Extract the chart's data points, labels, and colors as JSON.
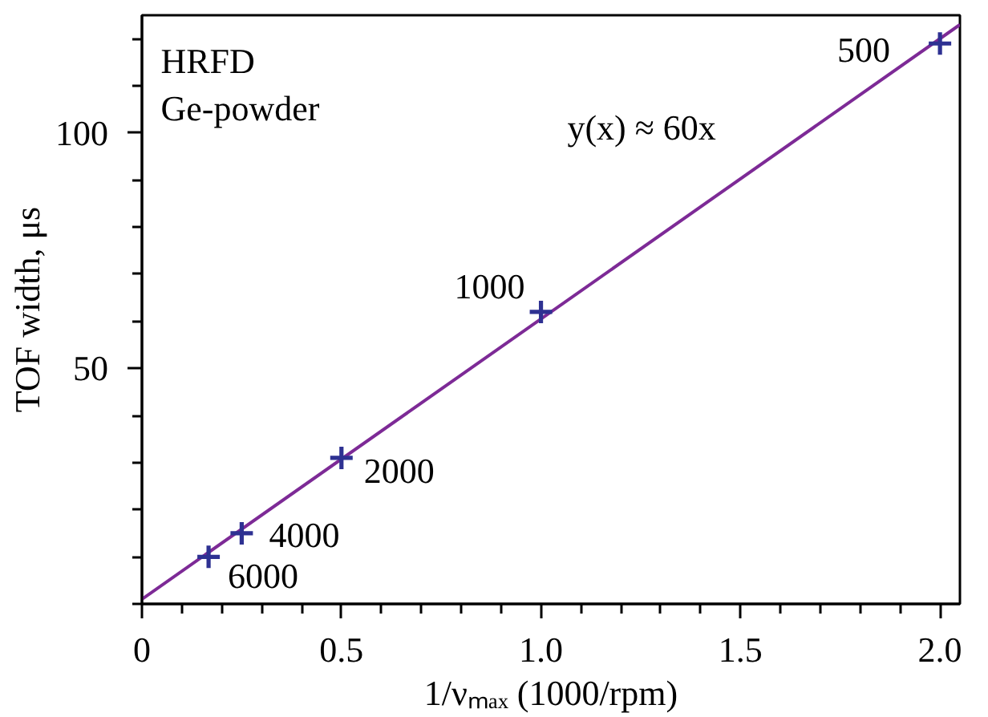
{
  "chart_data": {
    "type": "scatter",
    "xlabel": "1/νₘₐₓ (1000/rpm)",
    "ylabel": "TOF width, μs",
    "xlim": [
      0,
      2.05
    ],
    "ylim": [
      0,
      125
    ],
    "xticks": [
      0,
      {
        "value": 0.1,
        "label": null
      },
      {
        "value": 0.2,
        "label": null
      },
      {
        "value": 0.3,
        "label": null
      },
      {
        "value": 0.4,
        "label": null
      },
      0.5,
      {
        "value": 0.6,
        "label": null
      },
      {
        "value": 0.7,
        "label": null
      },
      {
        "value": 0.8,
        "label": null
      },
      {
        "value": 0.9,
        "label": null
      },
      {
        "value": 1,
        "label": "1.0"
      },
      {
        "value": 1.1,
        "label": null
      },
      {
        "value": 1.2,
        "label": null
      },
      {
        "value": 1.3,
        "label": null
      },
      {
        "value": 1.4,
        "label": null
      },
      1.5,
      {
        "value": 1.6,
        "label": null
      },
      {
        "value": 1.7,
        "label": null
      },
      {
        "value": 1.8,
        "label": null
      },
      {
        "value": 1.9,
        "label": null
      },
      {
        "value": 2,
        "label": "2.0"
      }
    ],
    "yticks": [
      {
        "value": 0,
        "label": null
      },
      {
        "value": 10,
        "label": null
      },
      {
        "value": 20,
        "label": null
      },
      {
        "value": 30,
        "label": null
      },
      {
        "value": 40,
        "label": null
      },
      50,
      {
        "value": 60,
        "label": null
      },
      {
        "value": 70,
        "label": null
      },
      {
        "value": 80,
        "label": null
      },
      {
        "value": 90,
        "label": null
      },
      100,
      {
        "value": 110,
        "label": null
      },
      {
        "value": 120,
        "label": null
      }
    ],
    "grid": false,
    "series": [
      {
        "color": "#2e3192",
        "marker": "cross",
        "x": [
          0.167,
          0.25,
          0.5,
          1,
          2
        ],
        "values": [
          10,
          15,
          31,
          62,
          119
        ]
      },
      {
        "type": "line",
        "color": "#7d2a96",
        "line_style": "solid",
        "marker": "none",
        "x": [
          0,
          2.05
        ],
        "values": [
          1,
          123
        ]
      }
    ],
    "annotations": [
      "HRFD",
      "Ge-powder",
      "y(x) ≈ 60x",
      {
        "text": "6000",
        "x": 0.167,
        "y": 10
      },
      {
        "text": "4000",
        "x": 0.25,
        "y": 15
      },
      {
        "text": "2000",
        "x": 0.5,
        "y": 31
      },
      {
        "text": "1000",
        "x": 1,
        "y": 62
      },
      {
        "text": "500",
        "x": 2,
        "y": 119
      }
    ]
  }
}
